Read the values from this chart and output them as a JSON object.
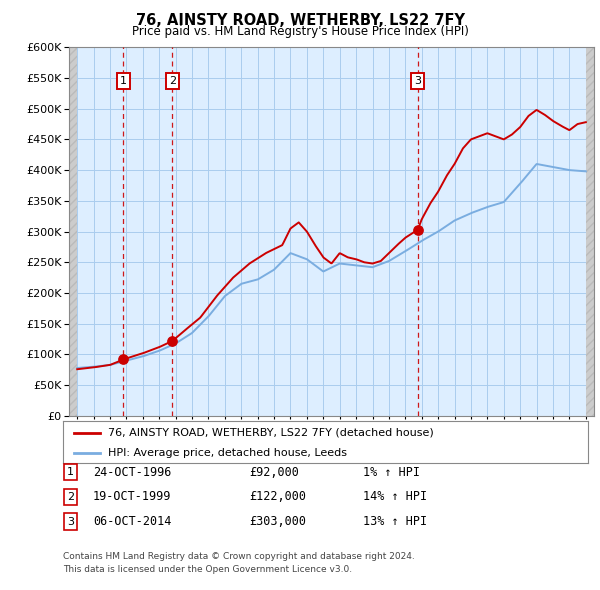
{
  "title": "76, AINSTY ROAD, WETHERBY, LS22 7FY",
  "subtitle": "Price paid vs. HM Land Registry's House Price Index (HPI)",
  "sales": [
    {
      "date_num": 1996.82,
      "price": 92000,
      "label": "1"
    },
    {
      "date_num": 1999.8,
      "price": 122000,
      "label": "2"
    },
    {
      "date_num": 2014.76,
      "price": 303000,
      "label": "3"
    }
  ],
  "legend_line1": "76, AINSTY ROAD, WETHERBY, LS22 7FY (detached house)",
  "legend_line2": "HPI: Average price, detached house, Leeds",
  "table_rows": [
    {
      "num": "1",
      "date": "24-OCT-1996",
      "price": "£92,000",
      "hpi": "1% ↑ HPI"
    },
    {
      "num": "2",
      "date": "19-OCT-1999",
      "price": "£122,000",
      "hpi": "14% ↑ HPI"
    },
    {
      "num": "3",
      "date": "06-OCT-2014",
      "price": "£303,000",
      "hpi": "13% ↑ HPI"
    }
  ],
  "footnote1": "Contains HM Land Registry data © Crown copyright and database right 2024.",
  "footnote2": "This data is licensed under the Open Government Licence v3.0.",
  "red_color": "#cc0000",
  "blue_color": "#7aade0",
  "grid_color": "#aaccee",
  "bg_color": "#ddeeff",
  "hpi_start_year": 1994,
  "hpi_end_year": 2025,
  "ylim": [
    0,
    600000
  ],
  "xlim_start": 1993.5,
  "xlim_end": 2025.5,
  "hpi_keypoints": [
    [
      1994.0,
      78000
    ],
    [
      1995.0,
      80000
    ],
    [
      1996.0,
      83000
    ],
    [
      1997.0,
      90000
    ],
    [
      1998.0,
      97000
    ],
    [
      1999.0,
      106000
    ],
    [
      2000.0,
      118000
    ],
    [
      2001.0,
      135000
    ],
    [
      2002.0,
      162000
    ],
    [
      2003.0,
      195000
    ],
    [
      2004.0,
      215000
    ],
    [
      2005.0,
      222000
    ],
    [
      2006.0,
      238000
    ],
    [
      2007.0,
      265000
    ],
    [
      2008.0,
      255000
    ],
    [
      2009.0,
      235000
    ],
    [
      2010.0,
      248000
    ],
    [
      2011.0,
      245000
    ],
    [
      2012.0,
      242000
    ],
    [
      2013.0,
      252000
    ],
    [
      2014.0,
      268000
    ],
    [
      2015.0,
      285000
    ],
    [
      2016.0,
      300000
    ],
    [
      2017.0,
      318000
    ],
    [
      2018.0,
      330000
    ],
    [
      2019.0,
      340000
    ],
    [
      2020.0,
      348000
    ],
    [
      2021.0,
      378000
    ],
    [
      2022.0,
      410000
    ],
    [
      2023.0,
      405000
    ],
    [
      2024.0,
      400000
    ],
    [
      2025.0,
      398000
    ]
  ],
  "red_keypoints": [
    [
      1994.0,
      76000
    ],
    [
      1995.0,
      79000
    ],
    [
      1996.0,
      83000
    ],
    [
      1996.82,
      92000
    ],
    [
      1997.5,
      98000
    ],
    [
      1998.0,
      102000
    ],
    [
      1999.0,
      112000
    ],
    [
      1999.8,
      122000
    ],
    [
      2000.5,
      138000
    ],
    [
      2001.5,
      160000
    ],
    [
      2002.5,
      195000
    ],
    [
      2003.5,
      225000
    ],
    [
      2004.5,
      248000
    ],
    [
      2005.5,
      265000
    ],
    [
      2006.5,
      278000
    ],
    [
      2007.0,
      305000
    ],
    [
      2007.5,
      315000
    ],
    [
      2008.0,
      300000
    ],
    [
      2008.5,
      278000
    ],
    [
      2009.0,
      258000
    ],
    [
      2009.5,
      248000
    ],
    [
      2010.0,
      265000
    ],
    [
      2010.5,
      258000
    ],
    [
      2011.0,
      255000
    ],
    [
      2011.5,
      250000
    ],
    [
      2012.0,
      248000
    ],
    [
      2012.5,
      252000
    ],
    [
      2013.0,
      265000
    ],
    [
      2013.5,
      278000
    ],
    [
      2014.0,
      290000
    ],
    [
      2014.76,
      303000
    ],
    [
      2015.0,
      320000
    ],
    [
      2015.5,
      345000
    ],
    [
      2016.0,
      365000
    ],
    [
      2016.5,
      390000
    ],
    [
      2017.0,
      410000
    ],
    [
      2017.5,
      435000
    ],
    [
      2018.0,
      450000
    ],
    [
      2018.5,
      455000
    ],
    [
      2019.0,
      460000
    ],
    [
      2019.5,
      455000
    ],
    [
      2020.0,
      450000
    ],
    [
      2020.5,
      458000
    ],
    [
      2021.0,
      470000
    ],
    [
      2021.5,
      488000
    ],
    [
      2022.0,
      498000
    ],
    [
      2022.5,
      490000
    ],
    [
      2023.0,
      480000
    ],
    [
      2023.5,
      472000
    ],
    [
      2024.0,
      465000
    ],
    [
      2024.5,
      475000
    ],
    [
      2025.0,
      478000
    ]
  ]
}
